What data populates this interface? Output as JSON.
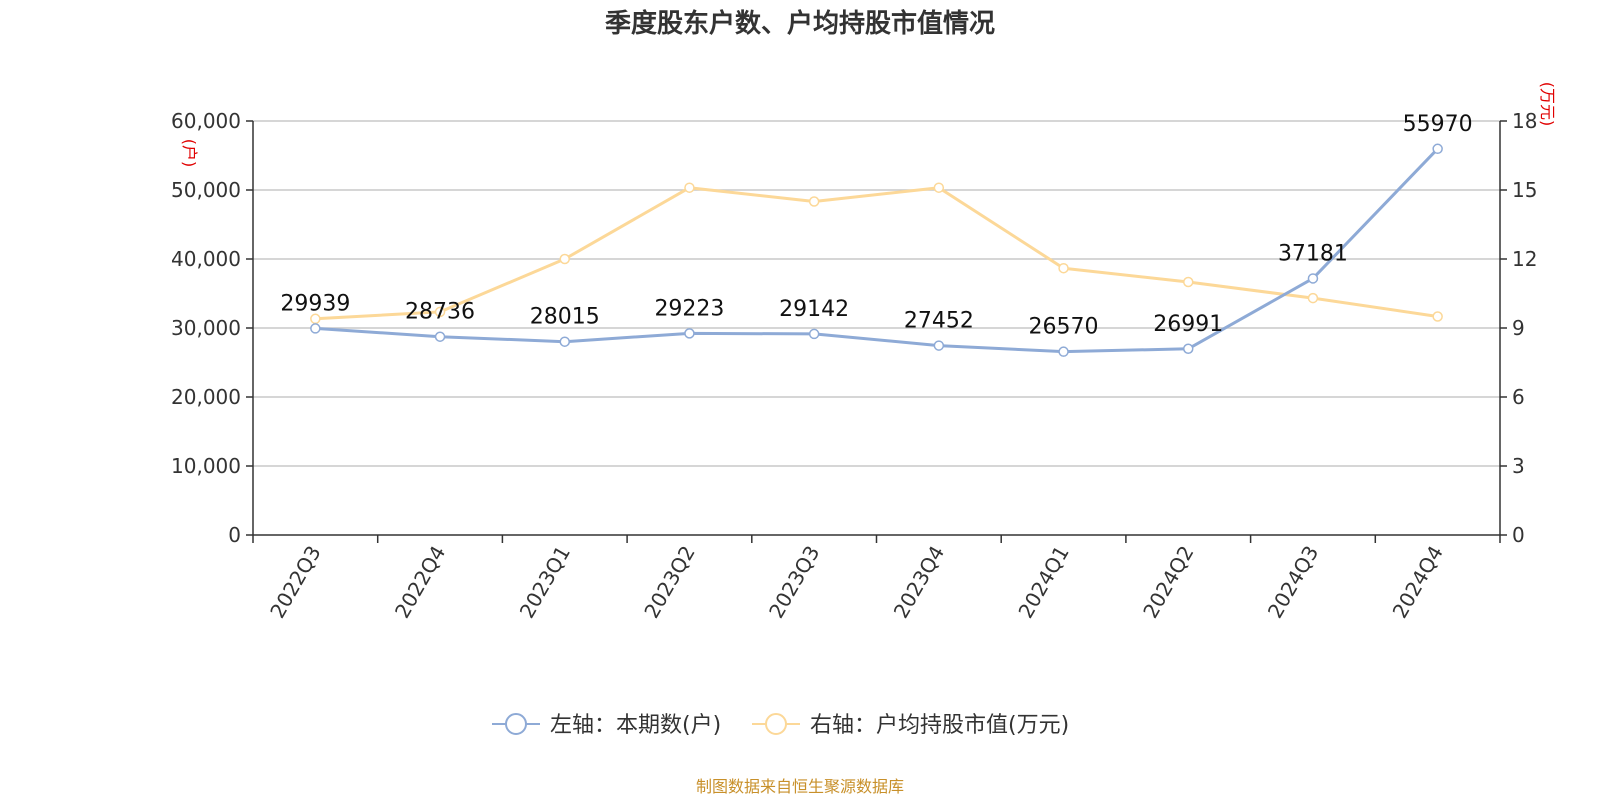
{
  "chart_data": {
    "type": "line",
    "title": "季度股东户数、户均持股市值情况",
    "categories": [
      "2022Q3",
      "2022Q4",
      "2023Q1",
      "2023Q2",
      "2023Q3",
      "2023Q4",
      "2024Q1",
      "2024Q2",
      "2024Q3",
      "2024Q4"
    ],
    "left_axis": {
      "unit": "(户)",
      "ylim": [
        0,
        60000
      ],
      "ticks": [
        "0",
        "10,000",
        "20,000",
        "30,000",
        "40,000",
        "50,000",
        "60,000"
      ]
    },
    "right_axis": {
      "unit": "(万元)",
      "ylim": [
        0,
        18
      ],
      "ticks": [
        "0",
        "3",
        "6",
        "9",
        "12",
        "15",
        "18"
      ]
    },
    "series": [
      {
        "name": "左轴：本期数(户)",
        "axis": "left",
        "color": "#8eaad6",
        "values": [
          29939,
          28736,
          28015,
          29223,
          29142,
          27452,
          26570,
          26991,
          37181,
          55970
        ],
        "labels": [
          "29939",
          "28736",
          "28015",
          "29223",
          "29142",
          "27452",
          "26570",
          "26991",
          "37181",
          "55970"
        ]
      },
      {
        "name": "右轴：户均持股市值(万元)",
        "axis": "right",
        "color": "#fcd898",
        "values": [
          9.4,
          9.7,
          12.0,
          15.1,
          14.5,
          15.1,
          11.6,
          11.0,
          10.3,
          9.5
        ]
      }
    ],
    "grid": true,
    "legend": "bottom-center",
    "source": "制图数据来自恒生聚源数据库"
  }
}
